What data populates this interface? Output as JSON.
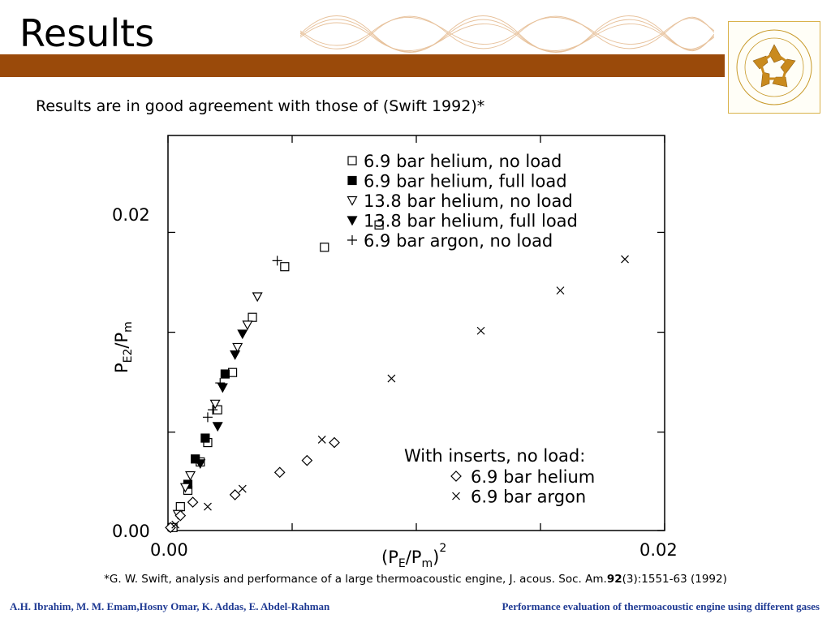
{
  "slide": {
    "title": "Results",
    "subtitle": "Results are in good agreement with those of (Swift 1992)*",
    "reference": {
      "prefix": "*G. W. Swift, analysis and performance of a large thermoacoustic engine, J. acous. Soc. Am.",
      "volume": "92",
      "suffix": "(3):1551-63 (1992)"
    },
    "footer_left": "A.H. Ibrahim, M. M. Emam,Hosny Omar, K. Addas, E. Abdel-Rahman",
    "footer_right": "Performance evaluation of thermoacoustic engine using different gases",
    "band_color": "#9a4a0a",
    "logo": {
      "icon": "auc-logo-icon",
      "text": "THE AMERICAN UNIVERSITY IN CAIRO"
    }
  },
  "chart_data": {
    "type": "scatter",
    "title": "",
    "xlabel": "(P_E/P_m)^2",
    "ylabel": "P_E2/P_m",
    "x_ticks": [
      "0.00",
      "0.02"
    ],
    "y_ticks": [
      "0.00",
      "0.02"
    ],
    "xlim": [
      0,
      0.02
    ],
    "ylim": [
      0,
      0.0265
    ],
    "grid": false,
    "legend_main": {
      "placement": "top-right"
    },
    "legend_inserts": {
      "title": "With inserts, no load:",
      "placement": "lower-right"
    },
    "series": [
      {
        "name": "6.9 bar helium, no load",
        "marker": "open-square",
        "group": "main",
        "x": [
          0.0002,
          0.0005,
          0.0008,
          0.0013,
          0.0016,
          0.002,
          0.0026,
          0.0034,
          0.0047,
          0.0063,
          0.0085
        ],
        "y": [
          0.0002,
          0.0016,
          0.0027,
          0.0046,
          0.0059,
          0.0081,
          0.0106,
          0.0143,
          0.0177,
          0.019,
          0.0205
        ]
      },
      {
        "name": "6.9 bar helium, full load",
        "marker": "filled-square",
        "group": "main",
        "x": [
          0.0008,
          0.0011,
          0.0015,
          0.0023
        ],
        "y": [
          0.0031,
          0.0048,
          0.0062,
          0.0105
        ]
      },
      {
        "name": "13.8 bar helium, no load",
        "marker": "open-triangle-down",
        "group": "main",
        "x": [
          0.0004,
          0.0007,
          0.0009,
          0.0019,
          0.0028,
          0.0032,
          0.0036
        ],
        "y": [
          0.0011,
          0.0029,
          0.0037,
          0.0085,
          0.0123,
          0.0138,
          0.0157
        ]
      },
      {
        "name": "13.8 bar helium, full load",
        "marker": "filled-triangle-down",
        "group": "main",
        "x": [
          0.0013,
          0.002,
          0.0022,
          0.0027,
          0.003
        ],
        "y": [
          0.0045,
          0.007,
          0.0096,
          0.0118,
          0.0132
        ]
      },
      {
        "name": "6.9 bar argon, no load",
        "marker": "plus",
        "group": "main",
        "x": [
          0.0016,
          0.0018,
          0.0021,
          0.0044
        ],
        "y": [
          0.0076,
          0.0081,
          0.0099,
          0.0181
        ]
      },
      {
        "name": "6.9 bar helium",
        "marker": "open-diamond",
        "group": "inserts",
        "x": [
          0.0001,
          0.0005,
          0.001,
          0.0027,
          0.0045,
          0.0056,
          0.0067
        ],
        "y": [
          0.0002,
          0.001,
          0.0019,
          0.0024,
          0.0039,
          0.0047,
          0.0059
        ]
      },
      {
        "name": "6.9 bar argon",
        "marker": "cross",
        "group": "inserts",
        "x": [
          0.0003,
          0.0016,
          0.003,
          0.0062,
          0.009,
          0.0126,
          0.0158,
          0.0184
        ],
        "y": [
          0.0004,
          0.0016,
          0.0028,
          0.0061,
          0.0102,
          0.0134,
          0.0161,
          0.0182
        ]
      }
    ]
  }
}
